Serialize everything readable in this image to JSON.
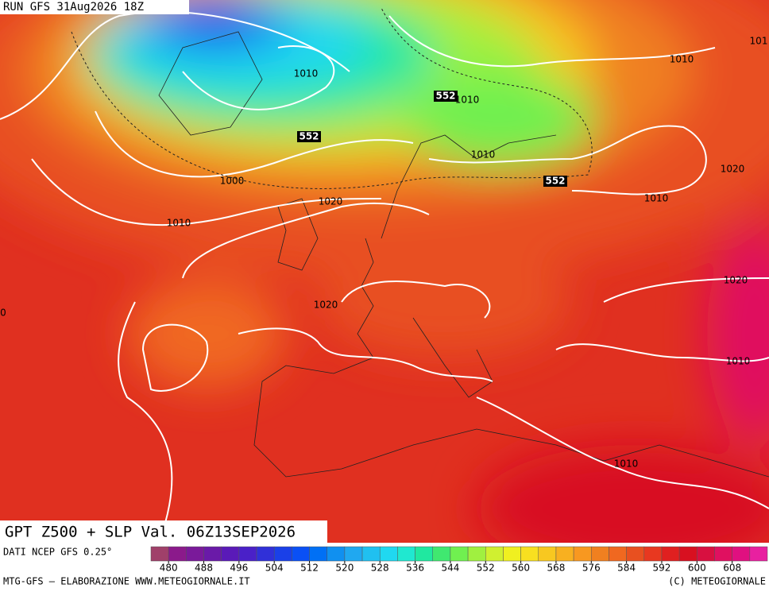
{
  "header": {
    "run": "RUN GFS 31Aug2026 18Z"
  },
  "map": {
    "contour_labels": [
      "1010",
      "552",
      "1010",
      "552",
      "1010",
      "552",
      "1000",
      "1020",
      "1010",
      "1010",
      "101",
      "1020",
      "1010",
      "1020",
      "0",
      "1020",
      "1010",
      "1010"
    ]
  },
  "footer": {
    "title": "GPT Z500 + SLP Val. 06Z13SEP2026",
    "source": "DATI NCEP GFS 0.25°",
    "credits": "MTG-GFS — ELABORAZIONE WWW.METEOGIORNALE.IT",
    "copyright": "(C) METEOGIORNALE"
  },
  "colorbar": {
    "ticks": [
      480,
      488,
      496,
      504,
      512,
      520,
      528,
      536,
      544,
      552,
      560,
      568,
      576,
      584,
      592,
      600,
      608
    ],
    "colors": [
      "#a0406a",
      "#8b1a8b",
      "#7a1a9a",
      "#6a1aa8",
      "#5a1ab8",
      "#4a20c8",
      "#3030d8",
      "#1a40e8",
      "#0a50f5",
      "#0070f5",
      "#1090f0",
      "#20a8f0",
      "#20c0f0",
      "#20d8f0",
      "#20e8d0",
      "#20e8a0",
      "#40e870",
      "#70f050",
      "#a0f040",
      "#d0f030",
      "#f0f020",
      "#f8e020",
      "#f8c820",
      "#f8b020",
      "#f89820",
      "#f08020",
      "#f06820",
      "#e85020",
      "#e83820",
      "#e02020",
      "#d81020",
      "#d81040",
      "#e01060",
      "#e01080",
      "#e820a0"
    ]
  }
}
